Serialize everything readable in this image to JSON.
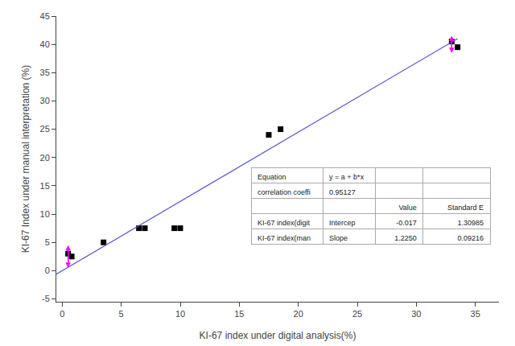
{
  "chart_data": {
    "type": "scatter",
    "xlabel": "KI-67 index under digital analysis(%)",
    "ylabel": "KI-67 Index under manual interpretation (%)",
    "series": [
      {
        "type": "scatter",
        "marker": "square",
        "color": "#000000",
        "x": [
          0.5,
          0.8,
          3.5,
          6.5,
          7.0,
          9.5,
          10.0,
          17.5,
          18.5,
          33.0,
          33.5
        ],
        "values": [
          3.0,
          2.5,
          5.0,
          7.5,
          7.5,
          7.5,
          7.5,
          24.0,
          25.0,
          40.5,
          39.5
        ]
      },
      {
        "type": "line",
        "line_style": "solid",
        "color": "#5555cc",
        "x": [
          -0.5,
          33.5
        ],
        "values": [
          -0.6295,
          41.0205
        ]
      },
      {
        "type": "error_bar",
        "color": "#ff00ff",
        "x": [
          0.5,
          33.0
        ],
        "y_top": [
          4.5,
          41.5
        ],
        "y_bot": [
          0.5,
          38.5
        ]
      }
    ],
    "xlim": [
      -0.5,
      37
    ],
    "ylim": [
      -5.5,
      45
    ],
    "xticks": [
      0,
      5,
      10,
      15,
      20,
      25,
      30,
      35
    ],
    "yticks": [
      -5,
      0,
      5,
      10,
      15,
      20,
      25,
      30,
      35,
      40,
      45
    ],
    "grid": false,
    "table": [
      [
        "Equation",
        "y = a + b*x",
        null,
        null
      ],
      [
        "correlation coeffi",
        "0.95127",
        null,
        null
      ],
      [
        null,
        null,
        "Value",
        "Standard E"
      ],
      [
        "KI-67 index(digit",
        "Intercep",
        "-0.017",
        "1.30985"
      ],
      [
        "KI-67 index(man",
        "Slope",
        "1.2250",
        "0.09216"
      ]
    ]
  }
}
